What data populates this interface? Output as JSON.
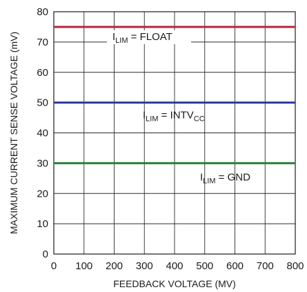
{
  "chart_data": {
    "type": "line",
    "title": "",
    "xlabel": "FEEDBACK VOLTAGE (MV)",
    "ylabel": "MAXIMUM CURRENT SENSE VOLTAGE (mV)",
    "xlim": [
      0,
      800
    ],
    "ylim": [
      0,
      80
    ],
    "xticks": [
      0,
      100,
      200,
      300,
      400,
      500,
      600,
      700,
      800
    ],
    "yticks": [
      0,
      10,
      20,
      30,
      40,
      50,
      60,
      70,
      80
    ],
    "grid": true,
    "legend": "none",
    "series": [
      {
        "name": "ILIM = FLOAT",
        "label_main": "I",
        "label_sub": "LIM",
        "label_rest": " = FLOAT",
        "label_tail_sub": "",
        "color": "#b3263b",
        "x": [
          0,
          800
        ],
        "y": [
          75,
          75
        ]
      },
      {
        "name": "ILIM = INTVCC",
        "label_main": "I",
        "label_sub": "LIM",
        "label_rest": " = INTV",
        "label_tail_sub": "CC",
        "color": "#2b3a9a",
        "x": [
          0,
          800
        ],
        "y": [
          50,
          50
        ]
      },
      {
        "name": "ILIM = GND",
        "label_main": "I",
        "label_sub": "LIM",
        "label_rest": " = GND",
        "label_tail_sub": "",
        "color": "#2e7d3a",
        "x": [
          0,
          800
        ],
        "y": [
          30,
          30
        ]
      }
    ]
  }
}
